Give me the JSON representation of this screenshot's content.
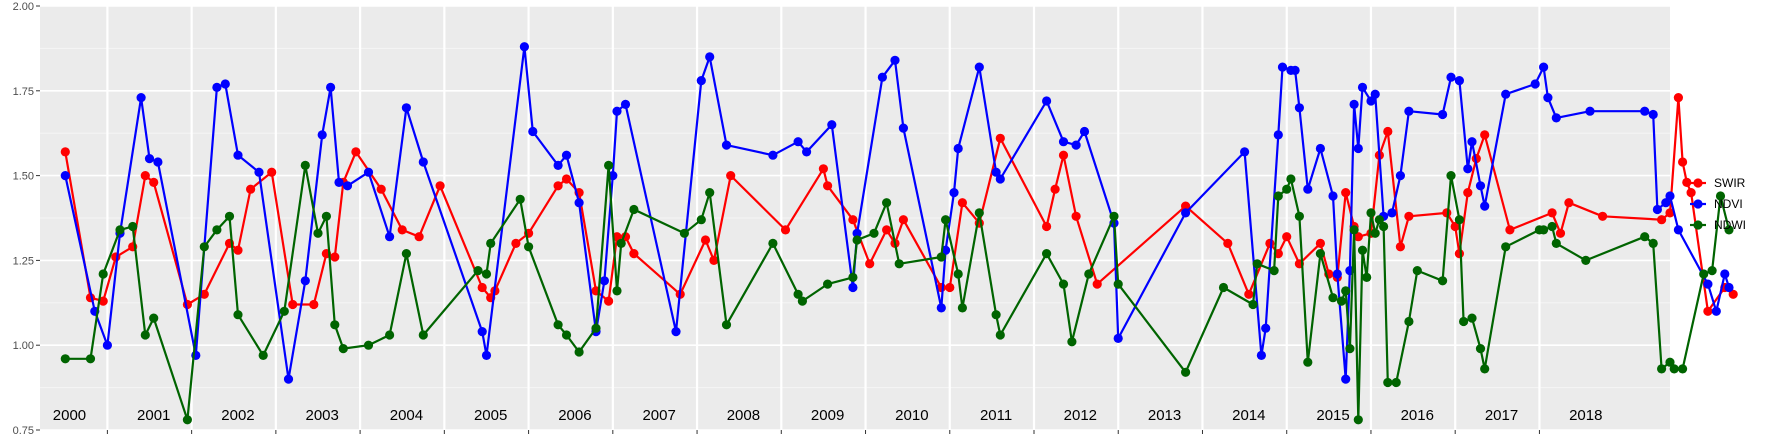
{
  "chart_data": {
    "type": "line",
    "title": "",
    "xlabel": "",
    "ylabel": "",
    "ylim": [
      0.75,
      2.0
    ],
    "yticks": [
      0.75,
      1.0,
      1.25,
      1.5,
      1.75,
      2.0
    ],
    "ytick_labels": [
      "0.75",
      "1.00",
      "1.25",
      "1.50",
      "1.75",
      "2.00"
    ],
    "xlim": [
      0,
      19.25
    ],
    "year_labels": [
      "2000",
      "2001",
      "2002",
      "2003",
      "2004",
      "2005",
      "2006",
      "2007",
      "2008",
      "2009",
      "2010",
      "2011",
      "2012",
      "2013",
      "2014",
      "2015",
      "2016",
      "2017",
      "2018"
    ],
    "grid": true,
    "legend_position": "right",
    "series": [
      {
        "name": "SWIR",
        "color": "#ff0000",
        "points": [
          [
            0.0,
            1.57
          ],
          [
            0.3,
            1.14
          ],
          [
            0.45,
            1.13
          ],
          [
            0.6,
            1.26
          ],
          [
            0.8,
            1.29
          ],
          [
            0.95,
            1.5
          ],
          [
            1.05,
            1.48
          ],
          [
            1.45,
            1.12
          ],
          [
            1.65,
            1.15
          ],
          [
            1.95,
            1.3
          ],
          [
            2.05,
            1.28
          ],
          [
            2.2,
            1.46
          ],
          [
            2.45,
            1.51
          ],
          [
            2.7,
            1.12
          ],
          [
            2.95,
            1.12
          ],
          [
            3.1,
            1.27
          ],
          [
            3.2,
            1.26
          ],
          [
            3.3,
            1.48
          ],
          [
            3.45,
            1.57
          ],
          [
            3.75,
            1.46
          ],
          [
            4.0,
            1.34
          ],
          [
            4.2,
            1.32
          ],
          [
            4.45,
            1.47
          ],
          [
            4.95,
            1.17
          ],
          [
            5.05,
            1.14
          ],
          [
            5.1,
            1.16
          ],
          [
            5.35,
            1.3
          ],
          [
            5.5,
            1.33
          ],
          [
            5.85,
            1.47
          ],
          [
            5.95,
            1.49
          ],
          [
            6.1,
            1.45
          ],
          [
            6.3,
            1.16
          ],
          [
            6.45,
            1.13
          ],
          [
            6.55,
            1.32
          ],
          [
            6.65,
            1.32
          ],
          [
            6.75,
            1.27
          ],
          [
            7.3,
            1.15
          ],
          [
            7.6,
            1.31
          ],
          [
            7.7,
            1.25
          ],
          [
            7.9,
            1.5
          ],
          [
            8.55,
            1.34
          ],
          [
            9.0,
            1.52
          ],
          [
            9.05,
            1.47
          ],
          [
            9.35,
            1.37
          ],
          [
            9.55,
            1.24
          ],
          [
            9.75,
            1.34
          ],
          [
            9.85,
            1.3
          ],
          [
            9.95,
            1.37
          ],
          [
            10.4,
            1.17
          ],
          [
            10.5,
            1.17
          ],
          [
            10.65,
            1.42
          ],
          [
            10.85,
            1.36
          ],
          [
            11.1,
            1.61
          ],
          [
            11.65,
            1.35
          ],
          [
            11.75,
            1.46
          ],
          [
            11.85,
            1.56
          ],
          [
            12.0,
            1.38
          ],
          [
            12.25,
            1.18
          ],
          [
            13.3,
            1.41
          ],
          [
            13.8,
            1.3
          ],
          [
            14.05,
            1.15
          ],
          [
            14.3,
            1.3
          ],
          [
            14.4,
            1.27
          ],
          [
            14.5,
            1.32
          ],
          [
            14.65,
            1.24
          ],
          [
            14.9,
            1.3
          ],
          [
            15.0,
            1.21
          ],
          [
            15.1,
            1.2
          ],
          [
            15.2,
            1.45
          ],
          [
            15.3,
            1.35
          ],
          [
            15.35,
            1.32
          ],
          [
            15.5,
            1.33
          ],
          [
            15.6,
            1.56
          ],
          [
            15.7,
            1.63
          ],
          [
            15.85,
            1.29
          ],
          [
            15.95,
            1.38
          ],
          [
            16.4,
            1.39
          ],
          [
            16.5,
            1.35
          ],
          [
            16.55,
            1.27
          ],
          [
            16.65,
            1.45
          ],
          [
            16.75,
            1.55
          ],
          [
            16.85,
            1.62
          ],
          [
            17.15,
            1.34
          ],
          [
            17.65,
            1.39
          ],
          [
            17.75,
            1.33
          ],
          [
            17.85,
            1.42
          ],
          [
            18.25,
            1.38
          ],
          [
            18.95,
            1.37
          ],
          [
            19.05,
            1.39
          ],
          [
            19.15,
            1.73
          ],
          [
            19.2,
            1.54
          ],
          [
            19.25,
            1.48
          ],
          [
            19.3,
            1.45
          ],
          [
            19.5,
            1.1
          ],
          [
            19.7,
            1.17
          ],
          [
            19.8,
            1.15
          ]
        ]
      },
      {
        "name": "NDVI",
        "color": "#0000ff",
        "points": [
          [
            0.0,
            1.5
          ],
          [
            0.35,
            1.1
          ],
          [
            0.5,
            1.0
          ],
          [
            0.65,
            1.33
          ],
          [
            0.9,
            1.73
          ],
          [
            1.0,
            1.55
          ],
          [
            1.1,
            1.54
          ],
          [
            1.55,
            0.97
          ],
          [
            1.8,
            1.76
          ],
          [
            1.9,
            1.77
          ],
          [
            2.05,
            1.56
          ],
          [
            2.3,
            1.51
          ],
          [
            2.65,
            0.9
          ],
          [
            2.85,
            1.19
          ],
          [
            3.05,
            1.62
          ],
          [
            3.15,
            1.76
          ],
          [
            3.25,
            1.48
          ],
          [
            3.35,
            1.47
          ],
          [
            3.6,
            1.51
          ],
          [
            3.85,
            1.32
          ],
          [
            4.05,
            1.7
          ],
          [
            4.25,
            1.54
          ],
          [
            4.95,
            1.04
          ],
          [
            5.0,
            0.97
          ],
          [
            5.45,
            1.88
          ],
          [
            5.55,
            1.63
          ],
          [
            5.85,
            1.53
          ],
          [
            5.95,
            1.56
          ],
          [
            6.1,
            1.42
          ],
          [
            6.3,
            1.04
          ],
          [
            6.4,
            1.19
          ],
          [
            6.5,
            1.5
          ],
          [
            6.55,
            1.69
          ],
          [
            6.65,
            1.71
          ],
          [
            7.25,
            1.04
          ],
          [
            7.55,
            1.78
          ],
          [
            7.65,
            1.85
          ],
          [
            7.85,
            1.59
          ],
          [
            8.4,
            1.56
          ],
          [
            8.7,
            1.6
          ],
          [
            8.8,
            1.57
          ],
          [
            9.1,
            1.65
          ],
          [
            9.35,
            1.17
          ],
          [
            9.4,
            1.33
          ],
          [
            9.7,
            1.79
          ],
          [
            9.85,
            1.84
          ],
          [
            9.95,
            1.64
          ],
          [
            10.4,
            1.11
          ],
          [
            10.45,
            1.28
          ],
          [
            10.55,
            1.45
          ],
          [
            10.6,
            1.58
          ],
          [
            10.85,
            1.82
          ],
          [
            11.05,
            1.51
          ],
          [
            11.1,
            1.49
          ],
          [
            11.65,
            1.72
          ],
          [
            11.85,
            1.6
          ],
          [
            12.0,
            1.59
          ],
          [
            12.1,
            1.63
          ],
          [
            12.45,
            1.36
          ],
          [
            12.5,
            1.02
          ],
          [
            13.3,
            1.39
          ],
          [
            14.0,
            1.57
          ],
          [
            14.2,
            0.97
          ],
          [
            14.25,
            1.05
          ],
          [
            14.4,
            1.62
          ],
          [
            14.45,
            1.82
          ],
          [
            14.55,
            1.81
          ],
          [
            14.6,
            1.81
          ],
          [
            14.65,
            1.7
          ],
          [
            14.75,
            1.46
          ],
          [
            14.9,
            1.58
          ],
          [
            15.05,
            1.44
          ],
          [
            15.1,
            1.21
          ],
          [
            15.2,
            0.9
          ],
          [
            15.25,
            1.22
          ],
          [
            15.3,
            1.71
          ],
          [
            15.35,
            1.58
          ],
          [
            15.4,
            1.76
          ],
          [
            15.5,
            1.72
          ],
          [
            15.55,
            1.74
          ],
          [
            15.65,
            1.38
          ],
          [
            15.75,
            1.39
          ],
          [
            15.85,
            1.5
          ],
          [
            15.95,
            1.69
          ],
          [
            16.35,
            1.68
          ],
          [
            16.45,
            1.79
          ],
          [
            16.55,
            1.78
          ],
          [
            16.65,
            1.52
          ],
          [
            16.7,
            1.6
          ],
          [
            16.8,
            1.47
          ],
          [
            16.85,
            1.41
          ],
          [
            17.1,
            1.74
          ],
          [
            17.45,
            1.77
          ],
          [
            17.55,
            1.82
          ],
          [
            17.6,
            1.73
          ],
          [
            17.7,
            1.67
          ],
          [
            18.1,
            1.69
          ],
          [
            18.75,
            1.69
          ],
          [
            18.85,
            1.68
          ],
          [
            18.9,
            1.4
          ],
          [
            19.0,
            1.42
          ],
          [
            19.05,
            1.44
          ],
          [
            19.15,
            1.34
          ],
          [
            19.5,
            1.18
          ],
          [
            19.6,
            1.1
          ],
          [
            19.7,
            1.21
          ],
          [
            19.75,
            1.17
          ]
        ]
      },
      {
        "name": "NDWI",
        "color": "#006400",
        "points": [
          [
            0.0,
            0.96
          ],
          [
            0.3,
            0.96
          ],
          [
            0.45,
            1.21
          ],
          [
            0.65,
            1.34
          ],
          [
            0.8,
            1.35
          ],
          [
            0.95,
            1.03
          ],
          [
            1.05,
            1.08
          ],
          [
            1.45,
            0.78
          ],
          [
            1.65,
            1.29
          ],
          [
            1.8,
            1.34
          ],
          [
            1.95,
            1.38
          ],
          [
            2.05,
            1.09
          ],
          [
            2.35,
            0.97
          ],
          [
            2.6,
            1.1
          ],
          [
            2.85,
            1.53
          ],
          [
            3.0,
            1.33
          ],
          [
            3.1,
            1.38
          ],
          [
            3.2,
            1.06
          ],
          [
            3.3,
            0.99
          ],
          [
            3.6,
            1.0
          ],
          [
            3.85,
            1.03
          ],
          [
            4.05,
            1.27
          ],
          [
            4.25,
            1.03
          ],
          [
            4.9,
            1.22
          ],
          [
            5.0,
            1.21
          ],
          [
            5.05,
            1.3
          ],
          [
            5.4,
            1.43
          ],
          [
            5.5,
            1.29
          ],
          [
            5.85,
            1.06
          ],
          [
            5.95,
            1.03
          ],
          [
            6.1,
            0.98
          ],
          [
            6.3,
            1.05
          ],
          [
            6.45,
            1.53
          ],
          [
            6.55,
            1.16
          ],
          [
            6.6,
            1.3
          ],
          [
            6.75,
            1.4
          ],
          [
            7.35,
            1.33
          ],
          [
            7.55,
            1.37
          ],
          [
            7.65,
            1.45
          ],
          [
            7.85,
            1.06
          ],
          [
            8.4,
            1.3
          ],
          [
            8.7,
            1.15
          ],
          [
            8.75,
            1.13
          ],
          [
            9.05,
            1.18
          ],
          [
            9.35,
            1.2
          ],
          [
            9.4,
            1.31
          ],
          [
            9.6,
            1.33
          ],
          [
            9.75,
            1.42
          ],
          [
            9.9,
            1.24
          ],
          [
            10.4,
            1.26
          ],
          [
            10.45,
            1.37
          ],
          [
            10.6,
            1.21
          ],
          [
            10.65,
            1.11
          ],
          [
            10.85,
            1.39
          ],
          [
            11.05,
            1.09
          ],
          [
            11.1,
            1.03
          ],
          [
            11.65,
            1.27
          ],
          [
            11.85,
            1.18
          ],
          [
            11.95,
            1.01
          ],
          [
            12.15,
            1.21
          ],
          [
            12.45,
            1.38
          ],
          [
            12.5,
            1.18
          ],
          [
            13.3,
            0.92
          ],
          [
            13.75,
            1.17
          ],
          [
            14.1,
            1.12
          ],
          [
            14.15,
            1.24
          ],
          [
            14.35,
            1.22
          ],
          [
            14.4,
            1.44
          ],
          [
            14.5,
            1.46
          ],
          [
            14.55,
            1.49
          ],
          [
            14.65,
            1.38
          ],
          [
            14.75,
            0.95
          ],
          [
            14.9,
            1.27
          ],
          [
            15.05,
            1.14
          ],
          [
            15.15,
            1.13
          ],
          [
            15.2,
            1.16
          ],
          [
            15.25,
            0.99
          ],
          [
            15.3,
            1.34
          ],
          [
            15.35,
            0.78
          ],
          [
            15.4,
            1.28
          ],
          [
            15.45,
            1.2
          ],
          [
            15.5,
            1.39
          ],
          [
            15.55,
            1.33
          ],
          [
            15.6,
            1.37
          ],
          [
            15.65,
            1.35
          ],
          [
            15.7,
            0.89
          ],
          [
            15.8,
            0.89
          ],
          [
            15.95,
            1.07
          ],
          [
            16.05,
            1.22
          ],
          [
            16.35,
            1.19
          ],
          [
            16.45,
            1.5
          ],
          [
            16.55,
            1.37
          ],
          [
            16.6,
            1.07
          ],
          [
            16.7,
            1.08
          ],
          [
            16.8,
            0.99
          ],
          [
            16.85,
            0.93
          ],
          [
            17.1,
            1.29
          ],
          [
            17.5,
            1.34
          ],
          [
            17.55,
            1.34
          ],
          [
            17.65,
            1.35
          ],
          [
            17.7,
            1.3
          ],
          [
            18.05,
            1.25
          ],
          [
            18.75,
            1.32
          ],
          [
            18.85,
            1.3
          ],
          [
            18.95,
            0.93
          ],
          [
            19.05,
            0.95
          ],
          [
            19.1,
            0.93
          ],
          [
            19.2,
            0.93
          ],
          [
            19.45,
            1.21
          ],
          [
            19.55,
            1.22
          ],
          [
            19.65,
            1.44
          ],
          [
            19.75,
            1.34
          ]
        ]
      }
    ]
  }
}
